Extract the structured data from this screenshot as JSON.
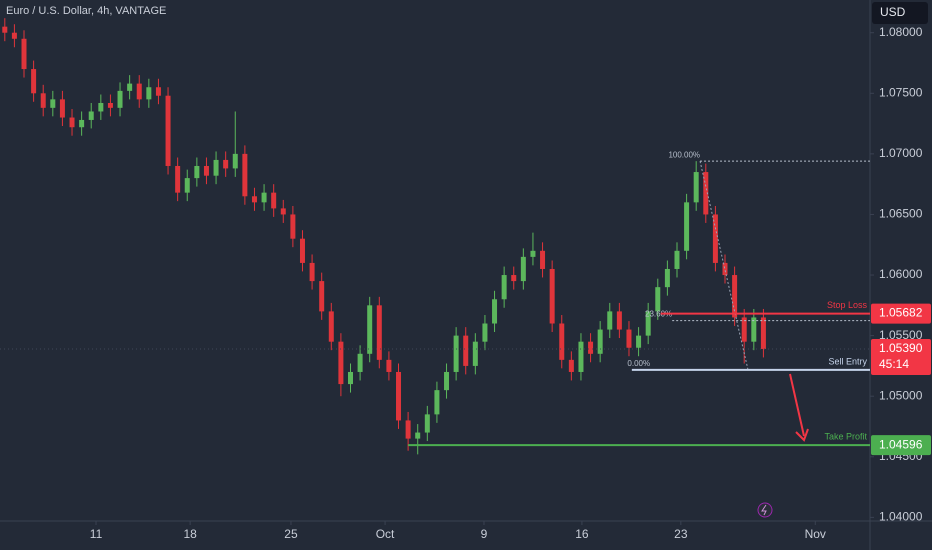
{
  "chart_data": {
    "type": "candlestick",
    "title": "Euro / U.S. Dollar, 4h, VANTAGE",
    "currency": "USD",
    "up_color": "#5cb85c",
    "down_color": "#e0353b",
    "open": [
      1.0805,
      1.08,
      1.0795,
      1.077,
      1.075,
      1.0738,
      1.0745,
      1.073,
      1.0722,
      1.0728,
      1.0735,
      1.0742,
      1.0738,
      1.0752,
      1.0758,
      1.0745,
      1.0755,
      1.0748,
      1.069,
      1.0668,
      1.068,
      1.069,
      1.0682,
      1.0695,
      1.0688,
      1.07,
      1.0665,
      1.066,
      1.0668,
      1.0655,
      1.065,
      1.063,
      1.061,
      1.0595,
      1.057,
      1.0545,
      1.051,
      1.052,
      1.0535,
      1.0575,
      1.053,
      1.052,
      1.048,
      1.0465,
      1.047,
      1.0485,
      1.0505,
      1.052,
      1.055,
      1.0525,
      1.0545,
      1.056,
      1.058,
      1.06,
      1.0595,
      1.0615,
      1.062,
      1.0605,
      1.056,
      1.053,
      1.052,
      1.0545,
      1.0535,
      1.0555,
      1.057,
      1.0555,
      1.054,
      1.055,
      1.057,
      1.059,
      1.0605,
      1.062,
      1.066,
      1.0685,
      1.065,
      1.061,
      1.06,
      1.0565,
      1.0545,
      1.0565
    ],
    "high": [
      1.0812,
      1.0807,
      1.0802,
      1.0777,
      1.0757,
      1.0752,
      1.0752,
      1.0737,
      1.0735,
      1.0742,
      1.0749,
      1.0749,
      1.0759,
      1.0765,
      1.0765,
      1.0762,
      1.0762,
      1.0755,
      1.0697,
      1.0687,
      1.0697,
      1.0697,
      1.0702,
      1.0702,
      1.0735,
      1.0707,
      1.0672,
      1.0675,
      1.0675,
      1.0662,
      1.0657,
      1.0637,
      1.0617,
      1.0602,
      1.0577,
      1.0552,
      1.0527,
      1.0542,
      1.0582,
      1.0582,
      1.0537,
      1.0527,
      1.0487,
      1.0477,
      1.0492,
      1.0512,
      1.0527,
      1.0557,
      1.0557,
      1.0552,
      1.0567,
      1.0587,
      1.0607,
      1.0607,
      1.0622,
      1.0635,
      1.0627,
      1.0612,
      1.0567,
      1.0537,
      1.0552,
      1.0552,
      1.0562,
      1.0577,
      1.0577,
      1.0562,
      1.0557,
      1.0577,
      1.0597,
      1.0612,
      1.0627,
      1.0667,
      1.0694,
      1.0692,
      1.0657,
      1.0617,
      1.0607,
      1.0572,
      1.0572,
      1.0572
    ],
    "low": [
      1.0793,
      1.0788,
      1.0763,
      1.0743,
      1.0731,
      1.0731,
      1.0723,
      1.0715,
      1.0715,
      1.0721,
      1.0728,
      1.0731,
      1.0731,
      1.0745,
      1.0738,
      1.0738,
      1.0741,
      1.0683,
      1.0661,
      1.0661,
      1.0673,
      1.0675,
      1.0675,
      1.0681,
      1.0681,
      1.0658,
      1.0653,
      1.0653,
      1.0648,
      1.0643,
      1.0623,
      1.0603,
      1.0588,
      1.0563,
      1.0538,
      1.05,
      1.0503,
      1.0513,
      1.0528,
      1.0523,
      1.0513,
      1.0473,
      1.0455,
      1.0452,
      1.0463,
      1.0478,
      1.0498,
      1.0513,
      1.0518,
      1.0518,
      1.0538,
      1.0553,
      1.0573,
      1.0588,
      1.0588,
      1.0608,
      1.0598,
      1.0553,
      1.0523,
      1.0513,
      1.0513,
      1.0528,
      1.0528,
      1.0548,
      1.0548,
      1.0533,
      1.0533,
      1.0543,
      1.0563,
      1.0583,
      1.0598,
      1.0613,
      1.0653,
      1.0643,
      1.0603,
      1.0593,
      1.0558,
      1.0527,
      1.0538,
      1.0532
    ],
    "close": [
      1.08,
      1.0795,
      1.077,
      1.075,
      1.0738,
      1.0745,
      1.073,
      1.0722,
      1.0728,
      1.0735,
      1.0742,
      1.0738,
      1.0752,
      1.0758,
      1.0745,
      1.0755,
      1.0748,
      1.069,
      1.0668,
      1.068,
      1.069,
      1.0682,
      1.0695,
      1.0688,
      1.07,
      1.0665,
      1.066,
      1.0668,
      1.0655,
      1.065,
      1.063,
      1.061,
      1.0595,
      1.057,
      1.0545,
      1.051,
      1.052,
      1.0535,
      1.0575,
      1.053,
      1.052,
      1.048,
      1.0465,
      1.047,
      1.0485,
      1.0505,
      1.052,
      1.055,
      1.0525,
      1.0545,
      1.056,
      1.058,
      1.06,
      1.0595,
      1.0615,
      1.062,
      1.0605,
      1.056,
      1.053,
      1.052,
      1.0545,
      1.0535,
      1.0555,
      1.057,
      1.0555,
      1.054,
      1.055,
      1.057,
      1.059,
      1.0605,
      1.062,
      1.066,
      1.0685,
      1.065,
      1.061,
      1.06,
      1.0565,
      1.0545,
      1.0565,
      1.0539
    ],
    "xlim": [
      -0.5,
      90.1
    ],
    "xticks": [
      {
        "value": 9.5,
        "label": "11"
      },
      {
        "value": 19.3,
        "label": "18"
      },
      {
        "value": 29.8,
        "label": "25"
      },
      {
        "value": 39.6,
        "label": "Oct"
      },
      {
        "value": 49.9,
        "label": "9"
      },
      {
        "value": 60.1,
        "label": "16"
      },
      {
        "value": 70.4,
        "label": "23"
      },
      {
        "value": 84.4,
        "label": "Nov"
      }
    ],
    "ylim": [
      1.0397,
      1.0827
    ],
    "yticks": [
      {
        "value": 1.08,
        "label": "1.08000"
      },
      {
        "value": 1.075,
        "label": "1.07500"
      },
      {
        "value": 1.07,
        "label": "1.07000"
      },
      {
        "value": 1.065,
        "label": "1.06500"
      },
      {
        "value": 1.06,
        "label": "1.06000"
      },
      {
        "value": 1.055,
        "label": "1.05500"
      },
      {
        "value": 1.05,
        "label": "1.05000"
      },
      {
        "value": 1.045,
        "label": "1.04500"
      },
      {
        "value": 1.04,
        "label": "1.04000"
      }
    ],
    "levels": [
      {
        "name": "Stop Loss",
        "value": 1.05682,
        "label": "1.05682",
        "color": "#f23645",
        "from": 68.3
      },
      {
        "name": "Sell Entry",
        "value": 1.05217,
        "color": "#c5d3ea",
        "from": 65.3
      },
      {
        "name": "Take Profit",
        "value": 1.04596,
        "label": "1.04596",
        "color": "#4caf50",
        "from": 42.0
      }
    ],
    "fib": [
      {
        "label": "100.00%",
        "value": 1.0694,
        "from": 72.4
      },
      {
        "label": "23.60%",
        "value": 1.05624,
        "from": 69.5
      },
      {
        "label": "0.00%",
        "value": 1.05217,
        "from": 67.2
      }
    ],
    "current": {
      "value": 1.0539,
      "label": "1.05390",
      "countdown": "45:14",
      "color": "#f23645"
    }
  }
}
